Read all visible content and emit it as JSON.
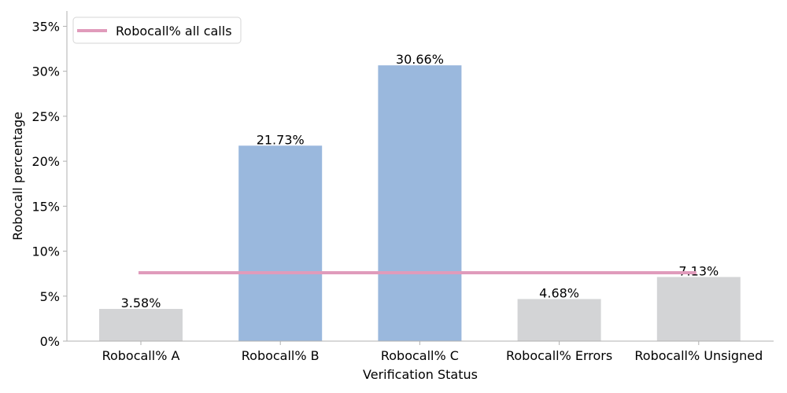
{
  "chart_data": {
    "type": "bar",
    "categories": [
      "Robocall% A",
      "Robocall% B",
      "Robocall% C",
      "Robocall% Errors",
      "Robocall% Unsigned"
    ],
    "values": [
      3.58,
      21.73,
      30.66,
      4.68,
      7.13
    ],
    "value_labels": [
      "3.58%",
      "21.73%",
      "30.66%",
      "4.68%",
      "7.13%"
    ],
    "bar_colors": [
      "#d3d4d6",
      "#9ab8dd",
      "#9ab8dd",
      "#d3d4d6",
      "#d3d4d6"
    ],
    "reference_line": {
      "name": "Robocall% all calls",
      "value": 7.6,
      "color": "#e09bbb"
    },
    "xlabel": "Verification Status",
    "ylabel": "Robocall percentage",
    "ylim": [
      0,
      36.7
    ],
    "yticks": [
      0,
      5,
      10,
      15,
      20,
      25,
      30,
      35
    ],
    "ytick_labels": [
      "0%",
      "5%",
      "10%",
      "15%",
      "20%",
      "25%",
      "30%",
      "35%"
    ],
    "grid": false,
    "legend_position": "top-left"
  }
}
